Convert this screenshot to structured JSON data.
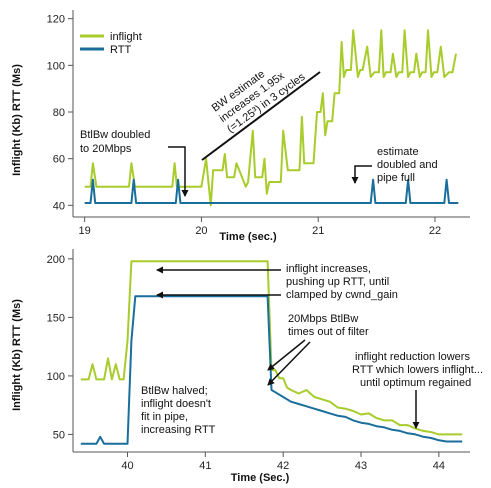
{
  "colors": {
    "inflight": "#a8cc2c",
    "rtt": "#1a6e9c",
    "axis": "#555555",
    "annotation": "#111111"
  },
  "chart_data": [
    {
      "type": "line",
      "ylabel": "Inflight (Kb) RTT (Ms)",
      "xlabel": "Time (sec.)",
      "xlim": [
        18.9,
        22.3
      ],
      "ylim": [
        35,
        122
      ],
      "x_ticks": [
        19,
        20,
        21,
        22
      ],
      "y_ticks": [
        40,
        60,
        80,
        100,
        120
      ],
      "legend": {
        "position": "top-left",
        "entries": [
          "inflight",
          "RTT"
        ]
      },
      "series": [
        {
          "name": "inflight",
          "x": [
            19.0,
            19.05,
            19.07,
            19.1,
            19.38,
            19.4,
            19.43,
            19.75,
            19.77,
            19.79,
            19.83,
            19.85,
            19.9,
            20.0,
            20.04,
            20.06,
            20.08,
            20.1,
            20.18,
            20.2,
            20.22,
            20.28,
            20.3,
            20.38,
            20.4,
            20.44,
            20.46,
            20.52,
            20.54,
            20.56,
            20.58,
            20.68,
            20.7,
            20.74,
            20.76,
            20.84,
            20.86,
            20.88,
            20.92,
            20.96,
            20.99,
            21.02,
            21.04,
            21.06,
            21.08,
            21.12,
            21.14,
            21.18,
            21.2,
            21.22,
            21.24,
            21.28,
            21.3,
            21.34,
            21.36,
            21.38,
            21.42,
            21.45,
            21.48,
            21.52,
            21.54,
            21.56,
            21.58,
            21.62,
            21.64,
            21.67,
            21.69,
            21.72,
            21.74,
            21.77,
            21.79,
            21.82,
            21.84,
            21.87,
            21.89,
            21.92,
            21.94,
            21.97,
            21.99,
            22.02,
            22.05,
            22.08,
            22.12,
            22.15,
            22.18
          ],
          "values": [
            48,
            48,
            58,
            48,
            48,
            58,
            48,
            48,
            58,
            48,
            48,
            48,
            48,
            48,
            60,
            50,
            40,
            55,
            55,
            62,
            52,
            52,
            58,
            48,
            50,
            72,
            52,
            52,
            60,
            45,
            50,
            50,
            72,
            55,
            55,
            55,
            78,
            58,
            58,
            58,
            80,
            80,
            88,
            70,
            76,
            76,
            88,
            88,
            110,
            95,
            98,
            98,
            115,
            95,
            98,
            98,
            108,
            95,
            97,
            97,
            115,
            95,
            97,
            97,
            105,
            95,
            97,
            97,
            115,
            95,
            97,
            97,
            105,
            95,
            97,
            97,
            115,
            95,
            97,
            97,
            108,
            95,
            97,
            97,
            105
          ]
        },
        {
          "name": "RTT",
          "x": [
            19.0,
            19.05,
            19.07,
            19.09,
            19.4,
            19.42,
            19.44,
            19.78,
            19.8,
            19.82,
            20.0,
            20.1,
            21.45,
            21.47,
            21.49,
            21.75,
            21.77,
            21.79,
            21.9,
            21.98,
            22.08,
            22.1,
            22.12,
            22.2
          ],
          "values": [
            41,
            41,
            51,
            41,
            41,
            51,
            41,
            41,
            51,
            41,
            41,
            41,
            41,
            51,
            41,
            41,
            51,
            41,
            41,
            41,
            41,
            51,
            41,
            41
          ]
        }
      ],
      "annotations": [
        {
          "lines": [
            "BtlBw doubled",
            "to 20Mbps"
          ]
        },
        {
          "lines": [
            "BW estimate",
            "increases 1.95x",
            "(=1.25³) in 3 cycles"
          ]
        },
        {
          "lines": [
            "estimate",
            "doubled and",
            "pipe full"
          ]
        }
      ]
    },
    {
      "type": "line",
      "ylabel": "Inflight (Kb) RTT (Ms)",
      "xlabel": "Time (Sec.)",
      "xlim": [
        39.3,
        44.4
      ],
      "ylim": [
        35,
        205
      ],
      "x_ticks": [
        40,
        41,
        42,
        43,
        44
      ],
      "y_ticks": [
        50,
        100,
        150,
        200
      ],
      "series": [
        {
          "name": "inflight",
          "x": [
            39.4,
            39.5,
            39.55,
            39.6,
            39.7,
            39.75,
            39.8,
            39.85,
            39.9,
            39.95,
            40.0,
            40.05,
            40.1,
            40.15,
            40.2,
            41.8,
            41.85,
            41.9,
            41.95,
            42.0,
            42.05,
            42.1,
            42.2,
            42.3,
            42.4,
            42.5,
            42.6,
            42.7,
            42.8,
            42.9,
            43.0,
            43.1,
            43.2,
            43.3,
            43.4,
            43.5,
            43.6,
            43.7,
            43.8,
            43.9,
            44.0,
            44.1,
            44.2,
            44.3
          ],
          "values": [
            97,
            97,
            110,
            97,
            97,
            115,
            97,
            110,
            97,
            97,
            130,
            198,
            198,
            198,
            198,
            198,
            105,
            105,
            98,
            98,
            90,
            88,
            85,
            88,
            82,
            80,
            78,
            73,
            72,
            70,
            67,
            68,
            64,
            62,
            62,
            58,
            58,
            55,
            53,
            52,
            50,
            50,
            50,
            50
          ]
        },
        {
          "name": "RTT",
          "x": [
            39.4,
            39.6,
            39.65,
            39.7,
            40.0,
            40.05,
            40.1,
            40.15,
            40.2,
            40.4,
            40.6,
            40.8,
            41.0,
            41.2,
            41.4,
            41.6,
            41.8,
            41.85,
            41.9,
            42.0,
            42.1,
            42.2,
            42.3,
            42.4,
            42.5,
            42.6,
            42.7,
            42.8,
            42.9,
            43.0,
            43.1,
            43.2,
            43.3,
            43.4,
            43.5,
            43.6,
            43.7,
            43.8,
            43.9,
            44.0,
            44.1,
            44.2,
            44.3
          ],
          "values": [
            42,
            42,
            48,
            42,
            42,
            130,
            168,
            168,
            168,
            168,
            168,
            168,
            168,
            168,
            168,
            168,
            168,
            88,
            86,
            82,
            78,
            76,
            74,
            72,
            70,
            68,
            66,
            65,
            62,
            60,
            59,
            57,
            56,
            54,
            53,
            51,
            50,
            48,
            47,
            45,
            44,
            44,
            44
          ]
        }
      ],
      "annotations": [
        {
          "lines": [
            "inflight increases,",
            "pushing up RTT, until",
            "clamped by cwnd_gain"
          ]
        },
        {
          "lines": [
            "20Mbps BtlBw",
            "times out of filter"
          ]
        },
        {
          "lines": [
            "inflight reduction lowers",
            "RTT which lowers inflight...",
            "until optimum regained"
          ]
        },
        {
          "lines": [
            "BtlBw halved;",
            "inflight doesn't",
            "fit in pipe,",
            "increasing RTT"
          ]
        }
      ]
    }
  ]
}
